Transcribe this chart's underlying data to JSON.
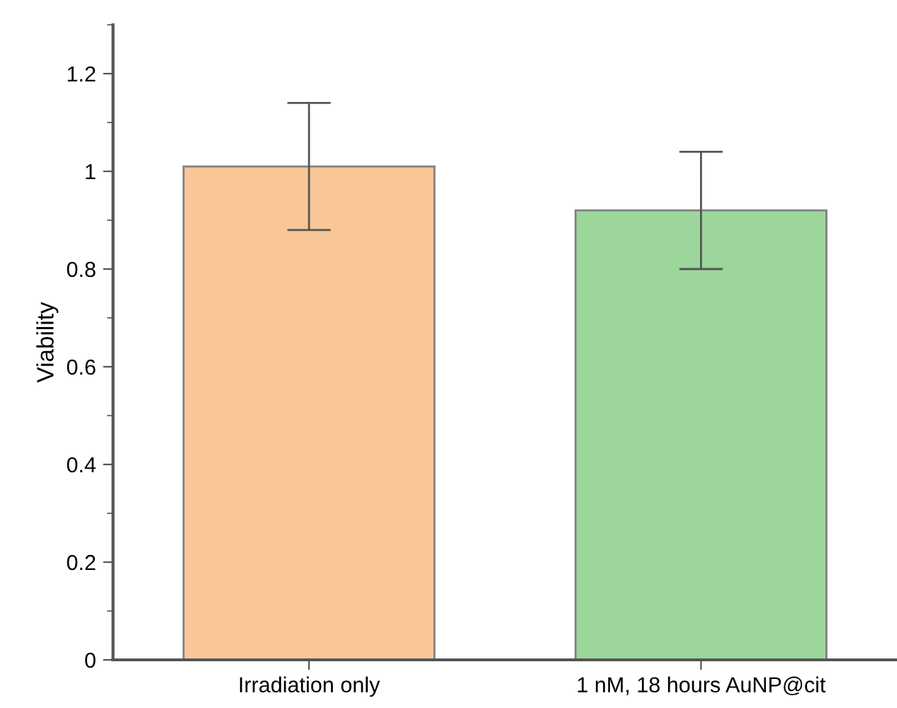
{
  "chart_data": {
    "type": "bar",
    "ylabel": "Viability",
    "categories": [
      "Irradiation only",
      "1 nM, 18 hours AuNP@cit"
    ],
    "values": [
      1.01,
      0.92
    ],
    "errors": [
      0.13,
      0.12
    ],
    "colors": [
      "#f9c797",
      "#9cd69a"
    ],
    "ylim": [
      0,
      1.3
    ],
    "yticks": [
      0,
      0.2,
      0.4,
      0.6,
      0.8,
      1,
      1.2
    ],
    "grid": false,
    "legend": false
  }
}
